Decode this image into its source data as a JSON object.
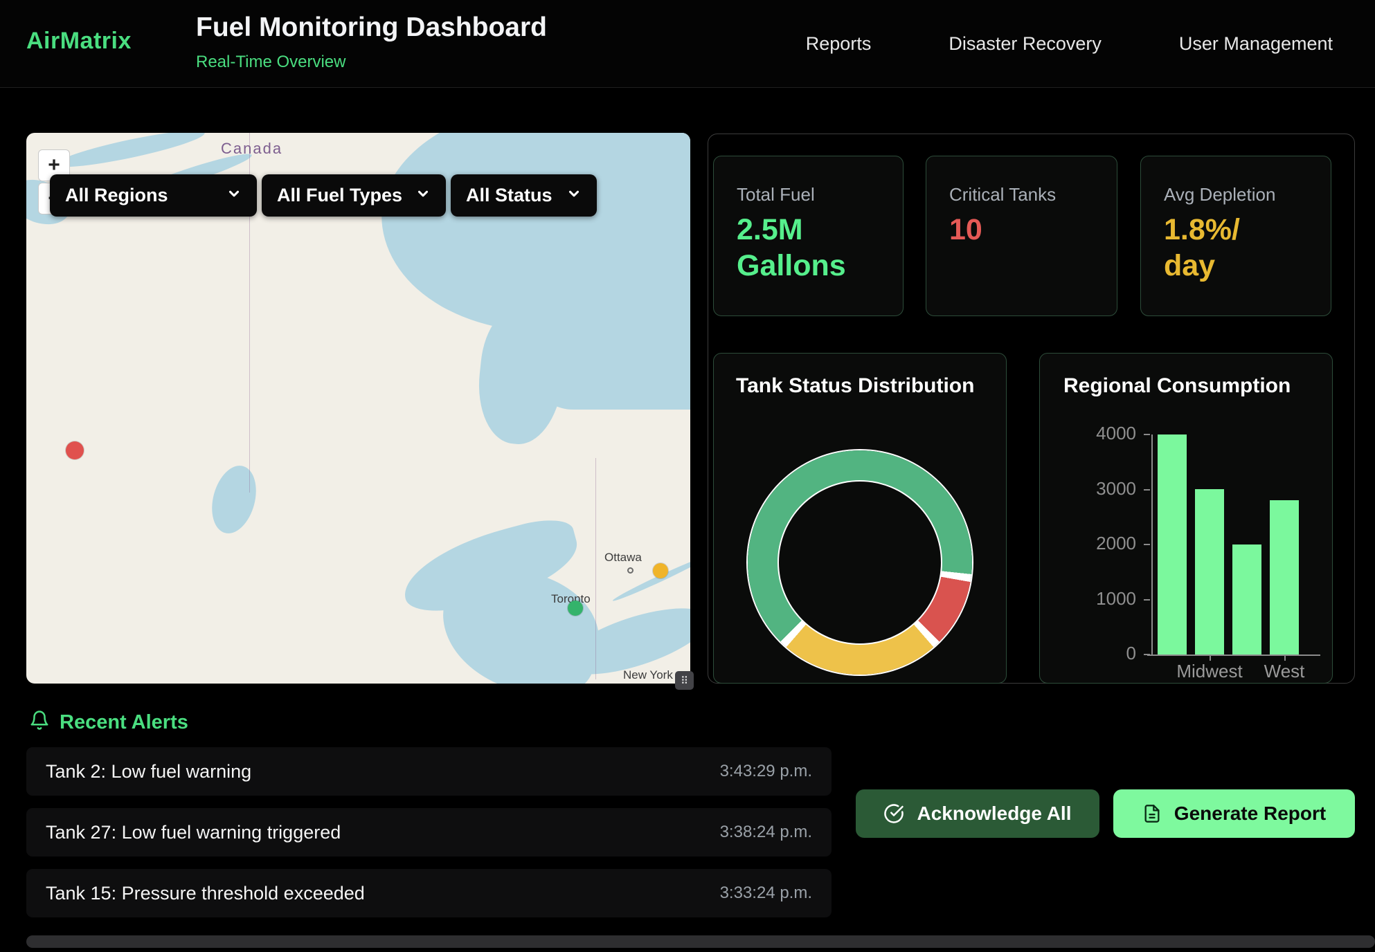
{
  "app": {
    "logo": "AirMatrix",
    "title": "Fuel Monitoring Dashboard",
    "subtitle": "Real-Time Overview"
  },
  "nav": {
    "items": [
      {
        "label": "Reports"
      },
      {
        "label": "Disaster Recovery"
      },
      {
        "label": "User Management"
      }
    ]
  },
  "map": {
    "zoom_in_label": "+",
    "zoom_out_label": "−",
    "grip_glyph": "⠿",
    "filters": [
      {
        "label": "All Regions"
      },
      {
        "label": "All Fuel Types"
      },
      {
        "label": "All Status"
      }
    ],
    "country_label": "Canada",
    "city_labels": [
      {
        "name": "Ottawa"
      },
      {
        "name": "Toronto"
      },
      {
        "name": "New York"
      }
    ],
    "markers": [
      {
        "status": "critical",
        "color": "#e0514e"
      },
      {
        "status": "warning",
        "color": "#f0b429"
      },
      {
        "status": "normal",
        "color": "#34b36b"
      }
    ]
  },
  "stats": [
    {
      "label": "Total Fuel",
      "value_lines": [
        "2.5M",
        "Gallons"
      ],
      "color": "#56ef8c"
    },
    {
      "label": "Critical Tanks",
      "value_lines": [
        "10",
        ""
      ],
      "color": "#e55a56"
    },
    {
      "label": "Avg Depletion",
      "value_lines": [
        "1.8%/",
        "day"
      ],
      "color": "#e8b931"
    }
  ],
  "alerts": {
    "heading": "Recent Alerts",
    "items": [
      {
        "message": "Tank 2: Low fuel warning",
        "time": "3:43:29 p.m."
      },
      {
        "message": "Tank 27: Low fuel warning triggered",
        "time": "3:38:24 p.m."
      },
      {
        "message": "Tank 15: Pressure threshold exceeded",
        "time": "3:33:24 p.m."
      }
    ]
  },
  "actions": {
    "acknowledge_all": "Acknowledge All",
    "generate_report": "Generate Report"
  },
  "colors": {
    "accent_green": "#4ade80",
    "light_green_button": "#7ef99e",
    "dark_green_button": "#2b5a36",
    "critical_red": "#e55a56",
    "warning_yellow": "#e8b931",
    "map_land": "#f2efe7",
    "map_water": "#b4d6e2"
  },
  "chart_data": [
    {
      "type": "pie",
      "subtype": "donut",
      "title": "Tank Status Distribution",
      "legend": "none",
      "slices": [
        {
          "label": "normal",
          "percent": 66,
          "color": "#52b481"
        },
        {
          "label": "critical",
          "percent": 11,
          "color": "#d9534f"
        },
        {
          "label": "warning",
          "percent": 23,
          "color": "#eec24a"
        }
      ],
      "conic_stops": [
        [
          "#52b481",
          0,
          96
        ],
        [
          "#ffffff",
          96,
          100
        ],
        [
          "#d9534f",
          100,
          135
        ],
        [
          "#ffffff",
          135,
          139
        ],
        [
          "#eec24a",
          139,
          221
        ],
        [
          "#ffffff",
          221,
          225
        ],
        [
          "#52b481",
          225,
          360
        ]
      ]
    },
    {
      "type": "bar",
      "title": "Regional Consumption",
      "categories": [
        "",
        "Midwest",
        "",
        "West"
      ],
      "visible_tick_labels": [
        "Midwest",
        "West"
      ],
      "values": [
        4000,
        3000,
        2000,
        2800
      ],
      "xlabel": "",
      "ylabel": "",
      "ylim": [
        0,
        4000
      ],
      "yticks": [
        0,
        1000,
        2000,
        3000,
        4000
      ],
      "bar_color": "#7bf89d",
      "grid": false,
      "legend": "none"
    }
  ]
}
